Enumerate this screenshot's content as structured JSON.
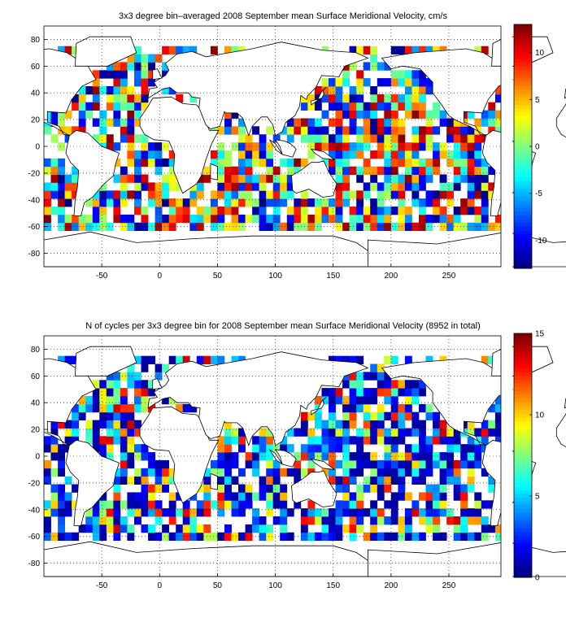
{
  "chart_data": [
    {
      "type": "heatmap",
      "title": "3x3 degree bin–averaged 2008 September mean Surface Meridional Velocity, cm/s",
      "xlabel": "",
      "ylabel": "",
      "xlim": [
        -100,
        295
      ],
      "ylim": [
        -90,
        90
      ],
      "x_ticks": [
        -50,
        0,
        50,
        100,
        150,
        200,
        250
      ],
      "y_ticks": [
        80,
        60,
        40,
        20,
        0,
        -20,
        -40,
        -60,
        -80
      ],
      "grid": true,
      "colorbar": {
        "min": -13,
        "max": 13,
        "ticks": [
          10,
          5,
          0,
          -5,
          -10
        ],
        "colormap": "jet"
      }
    },
    {
      "type": "heatmap",
      "title": "N of cycles per 3x3 degree bin for 2008 September mean Surface Meridional Velocity (8952 in total)",
      "xlabel": "",
      "ylabel": "",
      "xlim": [
        -100,
        295
      ],
      "ylim": [
        -90,
        90
      ],
      "x_ticks": [
        -50,
        0,
        50,
        100,
        150,
        200,
        250
      ],
      "y_ticks": [
        80,
        60,
        40,
        20,
        0,
        -20,
        -40,
        -60,
        -80
      ],
      "grid": true,
      "colorbar": {
        "min": 0,
        "max": 15,
        "ticks": [
          15,
          10,
          5,
          0
        ],
        "colormap": "jet"
      }
    }
  ],
  "colors": {
    "axis": "#000000",
    "grid": "#000000",
    "background": "#ffffff"
  }
}
